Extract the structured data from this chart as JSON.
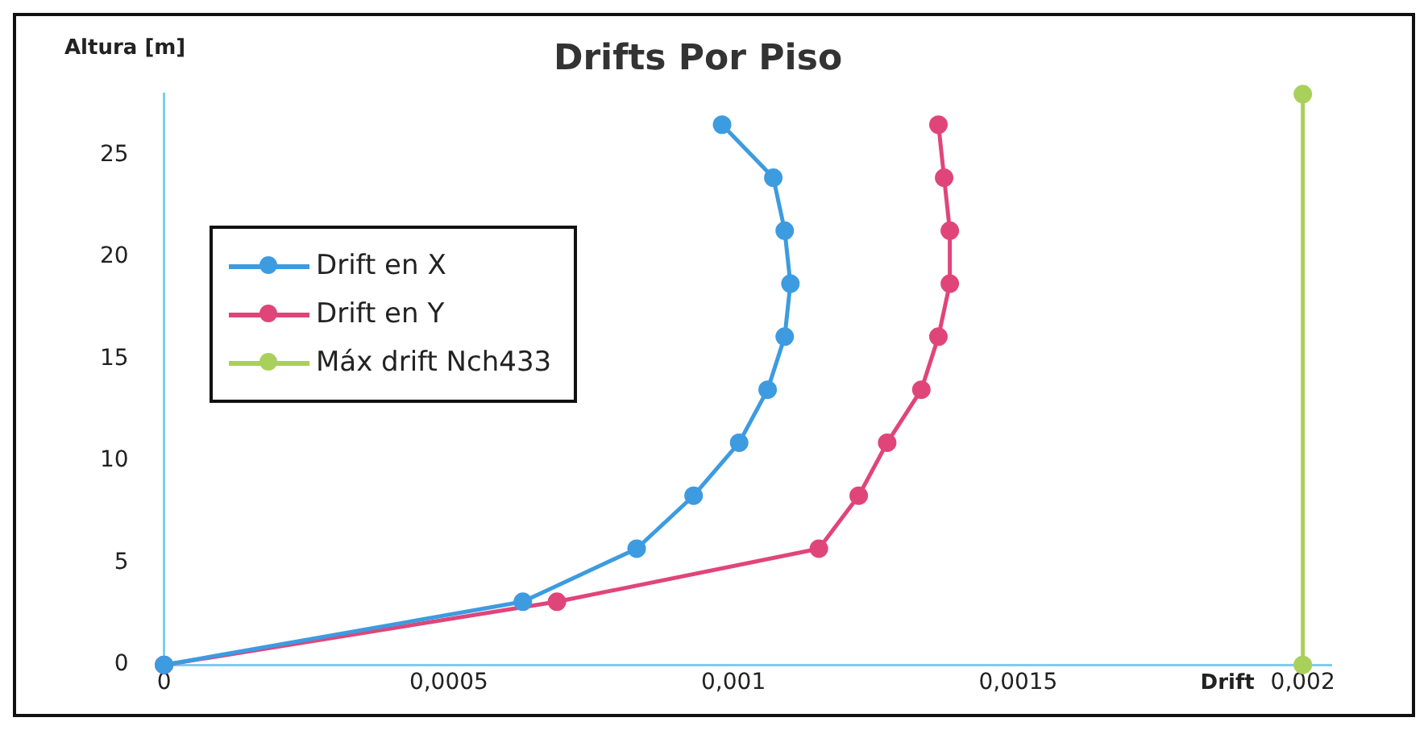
{
  "chart_data": {
    "type": "line",
    "title": "Drifts Por Piso",
    "xlabel": "Drift",
    "ylabel": "Altura [m]",
    "xlim": [
      0,
      0.00205
    ],
    "xticks": [
      {
        "value": 0,
        "label": "0"
      },
      {
        "value": 0.0005,
        "label": "0,0005"
      },
      {
        "value": 0.001,
        "label": "0,001"
      },
      {
        "value": 0.0015,
        "label": "0,0015"
      },
      {
        "value": 0.002,
        "label": "0,002"
      }
    ],
    "ylim": [
      0,
      28
    ],
    "yticks": [
      0,
      5,
      10,
      15,
      20,
      25
    ],
    "grid": false,
    "legend": "left",
    "marker": "circle",
    "line_style": "solid",
    "series": [
      {
        "name": "Drift en X",
        "color": "#3d9be0",
        "x": [
          0,
          0.00063,
          0.00083,
          0.00093,
          0.00101,
          0.00106,
          0.00109,
          0.0011,
          0.00109,
          0.00107,
          0.00098
        ],
        "values": [
          0,
          3.1,
          5.7,
          8.3,
          10.9,
          13.5,
          16.1,
          18.7,
          21.3,
          23.9,
          26.5
        ]
      },
      {
        "name": "Drift en Y",
        "color": "#e0457a",
        "x": [
          0,
          0.00069,
          0.00115,
          0.00122,
          0.00127,
          0.00133,
          0.00136,
          0.00138,
          0.00138,
          0.00137,
          0.00136
        ],
        "values": [
          0,
          3.1,
          5.7,
          8.3,
          10.9,
          13.5,
          16.1,
          18.7,
          21.3,
          23.9,
          26.5
        ]
      },
      {
        "name": "Máx drift Nch433",
        "color": "#a9d05a",
        "x": [
          0.002,
          0.002
        ],
        "values": [
          0,
          28
        ]
      }
    ]
  }
}
